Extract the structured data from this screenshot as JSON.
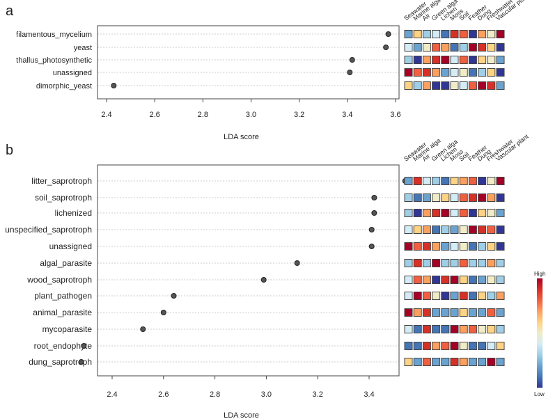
{
  "palette": [
    "#313695",
    "#4575b4",
    "#6ba3d0",
    "#9fcfe6",
    "#d3ecf5",
    "#f0ecc8",
    "#fed384",
    "#fca060",
    "#f06040",
    "#d73027",
    "#a50026"
  ],
  "legend": {
    "high": "High",
    "low": "Low"
  },
  "chart_data": [
    {
      "panel": "a",
      "type": "scatter",
      "xlabel": "LDA score",
      "xlim": [
        2.35,
        3.62
      ],
      "xticks": [
        "2.4",
        "2.6",
        "2.8",
        "3.0",
        "3.2",
        "3.4",
        "3.6"
      ],
      "categories": [
        "filamentous_mycelium",
        "yeast",
        "thallus_photosynthetic",
        "unassigned",
        "dimorphic_yeast"
      ],
      "values": [
        3.57,
        3.56,
        3.42,
        3.41,
        2.43
      ],
      "heatmap_columns": [
        "Seawater",
        "Marine alga",
        "Air",
        "Green alga",
        "Lichen",
        "Moss",
        "Soil",
        "Feather",
        "Dung",
        "Freshwater",
        "Vascular plant"
      ],
      "heatmap_levels": [
        [
          3,
          7,
          4,
          5,
          2,
          10,
          9,
          1,
          8,
          6,
          11
        ],
        [
          5,
          3,
          6,
          9,
          8,
          2,
          4,
          11,
          10,
          7,
          1
        ],
        [
          4,
          1,
          8,
          10,
          11,
          5,
          9,
          1,
          7,
          6,
          3
        ],
        [
          11,
          9,
          10,
          8,
          3,
          5,
          6,
          2,
          4,
          7,
          1
        ],
        [
          7,
          4,
          8,
          1,
          1,
          6,
          5,
          9,
          11,
          10,
          3
        ]
      ]
    },
    {
      "panel": "b",
      "type": "scatter",
      "xlabel": "LDA score",
      "xlim": [
        2.22,
        3.58
      ],
      "xticks": [
        "2.4",
        "2.6",
        "2.8",
        "3.0",
        "3.2",
        "3.4"
      ],
      "categories": [
        "litter_saprotroph",
        "soil_saprotroph",
        "lichenized",
        "unspecified_saprotroph",
        "unassigned",
        "algal_parasite",
        "wood_saprotroph",
        "plant_pathogen",
        "animal_parasite",
        "mycoparasite",
        "root_endophyte",
        "dung_saprotroph"
      ],
      "values": [
        3.54,
        3.42,
        3.42,
        3.41,
        3.41,
        3.12,
        2.99,
        2.64,
        2.6,
        2.52,
        2.29,
        2.28
      ],
      "heatmap_columns": [
        "Seawater",
        "Marine alga",
        "Air",
        "Green alga",
        "Lichen",
        "Moss",
        "Soil",
        "Feather",
        "Dung",
        "Freshwater",
        "Vascular plant"
      ],
      "heatmap_levels": [
        [
          3,
          10,
          5,
          4,
          2,
          7,
          8,
          9,
          1,
          6,
          11
        ],
        [
          4,
          2,
          3,
          6,
          7,
          5,
          9,
          10,
          11,
          8,
          1
        ],
        [
          4,
          1,
          8,
          10,
          11,
          5,
          9,
          1,
          7,
          6,
          3
        ],
        [
          5,
          7,
          8,
          2,
          4,
          3,
          6,
          11,
          10,
          9,
          1
        ],
        [
          11,
          9,
          10,
          8,
          3,
          5,
          6,
          2,
          4,
          7,
          1
        ],
        [
          4,
          10,
          4,
          11,
          4,
          4,
          9,
          4,
          4,
          8,
          4
        ],
        [
          5,
          9,
          8,
          1,
          10,
          11,
          7,
          2,
          3,
          6,
          4
        ],
        [
          5,
          11,
          9,
          6,
          1,
          3,
          10,
          2,
          7,
          4,
          8
        ],
        [
          11,
          8,
          10,
          3,
          3,
          3,
          7,
          3,
          3,
          9,
          3
        ],
        [
          5,
          2,
          10,
          2,
          2,
          11,
          8,
          9,
          6,
          7,
          4
        ],
        [
          2,
          2,
          10,
          8,
          9,
          11,
          6,
          2,
          2,
          5,
          7
        ],
        [
          7,
          3,
          9,
          3,
          3,
          10,
          8,
          3,
          3,
          11,
          3
        ]
      ]
    }
  ]
}
